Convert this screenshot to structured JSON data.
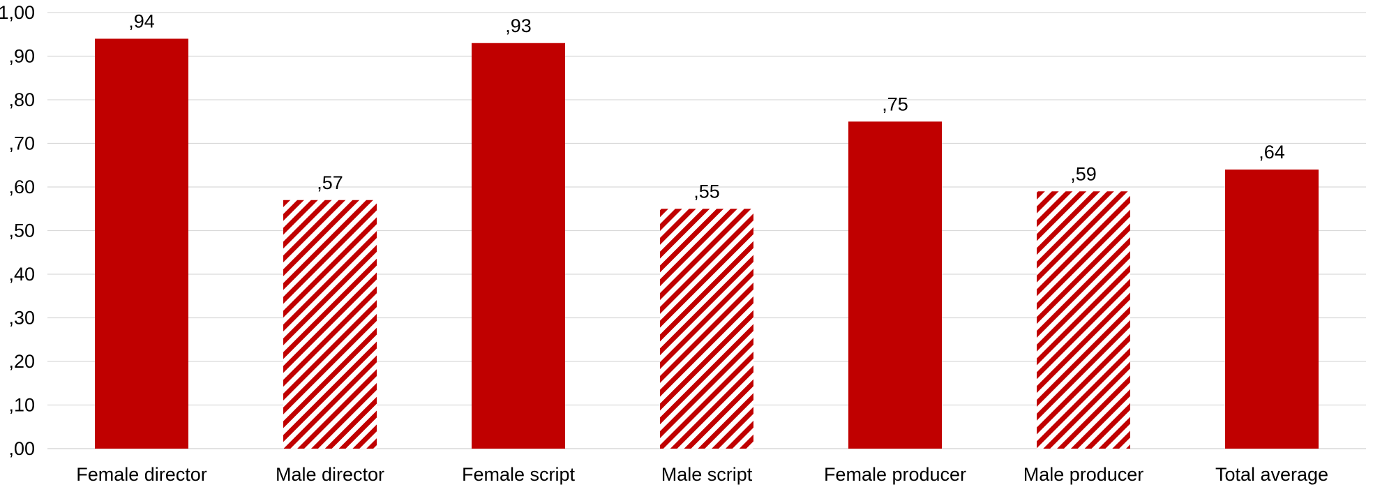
{
  "chart_data": {
    "type": "bar",
    "categories": [
      "Female director",
      "Male director",
      "Female script",
      "Male script",
      "Female producer",
      "Male producer",
      "Total average"
    ],
    "values": [
      0.94,
      0.57,
      0.93,
      0.55,
      0.75,
      0.59,
      0.64
    ],
    "value_labels": [
      ",94",
      ",57",
      ",93",
      ",55",
      ",75",
      ",59",
      ",64"
    ],
    "bar_styles": [
      "solid",
      "hatched",
      "solid",
      "hatched",
      "solid",
      "hatched",
      "solid"
    ],
    "ylim": [
      0,
      1
    ],
    "yticks": [
      0,
      0.1,
      0.2,
      0.3,
      0.4,
      0.5,
      0.6,
      0.7,
      0.8,
      0.9,
      1.0
    ],
    "ytick_labels": [
      ",00",
      ",10",
      ",20",
      ",30",
      ",40",
      ",50",
      ",60",
      ",70",
      ",80",
      ",90",
      "1,00"
    ],
    "title": "",
    "xlabel": "",
    "ylabel": "",
    "grid": true,
    "legend": "none",
    "colors": {
      "bar": "#c00000",
      "grid": "#d9d9d9",
      "axis": "#d9d9d9",
      "text": "#000000"
    }
  }
}
